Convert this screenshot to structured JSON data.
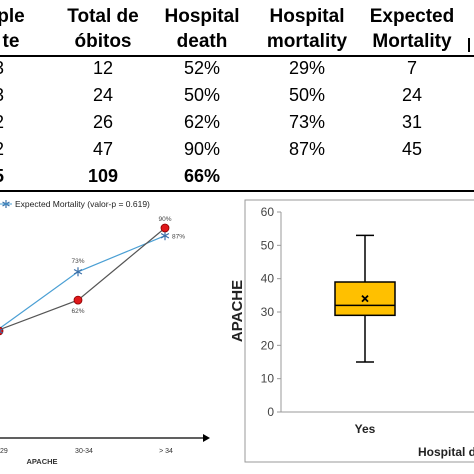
{
  "table": {
    "headers": [
      {
        "line1": "ple",
        "line2": "te"
      },
      {
        "line1": "Total de",
        "line2": "óbitos"
      },
      {
        "line1": "Hospital",
        "line2": "death"
      },
      {
        "line1": "Hospital",
        "line2": "mortality"
      },
      {
        "line1": "Expected",
        "line2": "Mortality"
      }
    ],
    "rows": [
      [
        "3",
        "12",
        "52%",
        "29%",
        "7"
      ],
      [
        "3",
        "24",
        "50%",
        "50%",
        "24"
      ],
      [
        "2",
        "26",
        "62%",
        "73%",
        "31"
      ],
      [
        "2",
        "47",
        "90%",
        "87%",
        "45"
      ]
    ],
    "total_row": [
      "5",
      "109",
      "66%",
      "",
      ""
    ]
  },
  "chart_data": [
    {
      "type": "line",
      "title": "",
      "xlabel": "APACHE",
      "ylabel": "",
      "categories": [
        "29",
        "30-34",
        "> 34"
      ],
      "series": [
        {
          "name": "Expected Mortality (valor-p = 0.619)",
          "values": [
            null,
            73,
            87
          ],
          "value_labels": [
            "",
            "73%",
            "87%"
          ],
          "color": "#4a9fd4",
          "marker": "asterisk"
        },
        {
          "name": "",
          "values": [
            null,
            62,
            90
          ],
          "value_labels": [
            "",
            "62%",
            "90%"
          ],
          "color": "#555555",
          "marker": "circle",
          "marker_color": "#e0181b"
        }
      ],
      "legend_placement": "top-left",
      "grid": false
    },
    {
      "type": "box",
      "title": "",
      "xlabel": "Hospital de",
      "ylabel": "APACHE",
      "categories": [
        "Yes"
      ],
      "ylim": [
        0,
        60
      ],
      "yticks": [
        0,
        10,
        20,
        30,
        40,
        50,
        60
      ],
      "box": {
        "min": 15,
        "q1": 29,
        "median": 32,
        "q3": 39,
        "max": 53,
        "mean": 34
      },
      "box_color": "#ffc000",
      "grid": false
    }
  ]
}
